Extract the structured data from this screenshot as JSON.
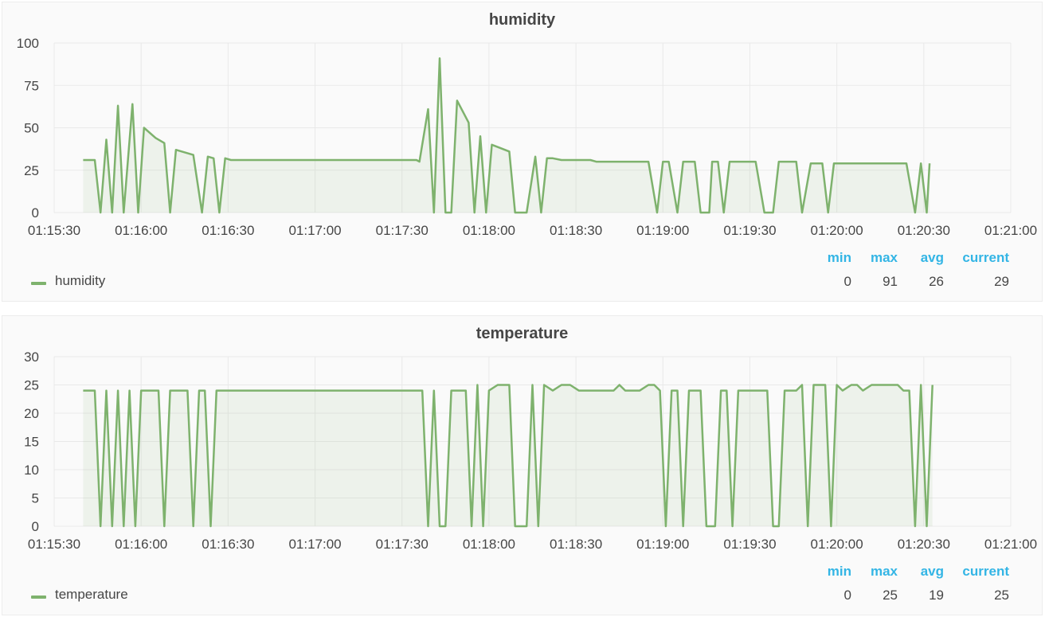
{
  "legend_colors": {
    "series": "#7eb26d",
    "stat_header": "#33b5e5"
  },
  "stat_headers": {
    "min": "min",
    "max": "max",
    "avg": "avg",
    "current": "current"
  },
  "chart_data": [
    {
      "type": "area",
      "title": "humidity",
      "x_unit": "time",
      "x_ticks": [
        "01:15:30",
        "01:16:00",
        "01:16:30",
        "01:17:00",
        "01:17:30",
        "01:18:00",
        "01:18:30",
        "01:19:00",
        "01:19:30",
        "01:20:00",
        "01:20:30",
        "01:21:00"
      ],
      "xlim": [
        "01:15:30",
        "01:21:00"
      ],
      "ylim": [
        0,
        100
      ],
      "y_ticks": [
        0,
        25,
        50,
        75,
        100
      ],
      "grid": true,
      "legend_position": "bottom-left",
      "series": [
        {
          "name": "humidity",
          "color": "#7eb26d",
          "points": [
            [
              "01:15:40",
              31
            ],
            [
              "01:15:44",
              31
            ],
            [
              "01:15:46",
              0
            ],
            [
              "01:15:48",
              43
            ],
            [
              "01:15:50",
              0
            ],
            [
              "01:15:52",
              63
            ],
            [
              "01:15:54",
              0
            ],
            [
              "01:15:57",
              64
            ],
            [
              "01:15:59",
              0
            ],
            [
              "01:16:01",
              50
            ],
            [
              "01:16:05",
              44
            ],
            [
              "01:16:08",
              41
            ],
            [
              "01:16:10",
              0
            ],
            [
              "01:16:12",
              37
            ],
            [
              "01:16:18",
              34
            ],
            [
              "01:16:21",
              0
            ],
            [
              "01:16:23",
              33
            ],
            [
              "01:16:25",
              32
            ],
            [
              "01:16:27",
              0
            ],
            [
              "01:16:29",
              32
            ],
            [
              "01:16:31",
              31
            ],
            [
              "01:17:35",
              31
            ],
            [
              "01:17:36",
              30
            ],
            [
              "01:17:39",
              61
            ],
            [
              "01:17:41",
              0
            ],
            [
              "01:17:43",
              91
            ],
            [
              "01:17:45",
              0
            ],
            [
              "01:17:47",
              0
            ],
            [
              "01:17:49",
              66
            ],
            [
              "01:17:53",
              53
            ],
            [
              "01:17:55",
              0
            ],
            [
              "01:17:57",
              45
            ],
            [
              "01:17:59",
              0
            ],
            [
              "01:18:01",
              40
            ],
            [
              "01:18:04",
              38
            ],
            [
              "01:18:07",
              36
            ],
            [
              "01:18:09",
              0
            ],
            [
              "01:18:13",
              0
            ],
            [
              "01:18:16",
              33
            ],
            [
              "01:18:18",
              0
            ],
            [
              "01:18:20",
              32
            ],
            [
              "01:18:22",
              32
            ],
            [
              "01:18:25",
              31
            ],
            [
              "01:18:35",
              31
            ],
            [
              "01:18:37",
              30
            ],
            [
              "01:18:55",
              30
            ],
            [
              "01:18:58",
              0
            ],
            [
              "01:19:00",
              30
            ],
            [
              "01:19:02",
              30
            ],
            [
              "01:19:05",
              0
            ],
            [
              "01:19:07",
              30
            ],
            [
              "01:19:11",
              30
            ],
            [
              "01:19:13",
              0
            ],
            [
              "01:19:16",
              0
            ],
            [
              "01:19:17",
              30
            ],
            [
              "01:19:19",
              30
            ],
            [
              "01:19:21",
              0
            ],
            [
              "01:19:23",
              30
            ],
            [
              "01:19:32",
              30
            ],
            [
              "01:19:35",
              0
            ],
            [
              "01:19:38",
              0
            ],
            [
              "01:19:40",
              30
            ],
            [
              "01:19:46",
              30
            ],
            [
              "01:19:48",
              0
            ],
            [
              "01:19:51",
              29
            ],
            [
              "01:19:55",
              29
            ],
            [
              "01:19:57",
              0
            ],
            [
              "01:19:59",
              29
            ],
            [
              "01:20:24",
              29
            ],
            [
              "01:20:27",
              0
            ],
            [
              "01:20:29",
              29
            ],
            [
              "01:20:31",
              0
            ],
            [
              "01:20:32",
              29
            ]
          ]
        }
      ],
      "stats": {
        "min": "0",
        "max": "91",
        "avg": "26",
        "current": "29"
      }
    },
    {
      "type": "area",
      "title": "temperature",
      "x_unit": "time",
      "x_ticks": [
        "01:15:30",
        "01:16:00",
        "01:16:30",
        "01:17:00",
        "01:17:30",
        "01:18:00",
        "01:18:30",
        "01:19:00",
        "01:19:30",
        "01:20:00",
        "01:20:30",
        "01:21:00"
      ],
      "xlim": [
        "01:15:30",
        "01:21:00"
      ],
      "ylim": [
        0,
        30
      ],
      "y_ticks": [
        0,
        5,
        10,
        15,
        20,
        25,
        30
      ],
      "grid": true,
      "legend_position": "bottom-left",
      "series": [
        {
          "name": "temperature",
          "color": "#7eb26d",
          "points": [
            [
              "01:15:40",
              24
            ],
            [
              "01:15:44",
              24
            ],
            [
              "01:15:46",
              0
            ],
            [
              "01:15:48",
              24
            ],
            [
              "01:15:50",
              0
            ],
            [
              "01:15:52",
              24
            ],
            [
              "01:15:54",
              0
            ],
            [
              "01:15:56",
              24
            ],
            [
              "01:15:58",
              0
            ],
            [
              "01:16:00",
              24
            ],
            [
              "01:16:06",
              24
            ],
            [
              "01:16:08",
              0
            ],
            [
              "01:16:10",
              24
            ],
            [
              "01:16:16",
              24
            ],
            [
              "01:16:18",
              0
            ],
            [
              "01:16:20",
              24
            ],
            [
              "01:16:22",
              24
            ],
            [
              "01:16:24",
              0
            ],
            [
              "01:16:26",
              24
            ],
            [
              "01:17:37",
              24
            ],
            [
              "01:17:39",
              0
            ],
            [
              "01:17:41",
              24
            ],
            [
              "01:17:43",
              0
            ],
            [
              "01:17:45",
              0
            ],
            [
              "01:17:47",
              24
            ],
            [
              "01:17:52",
              24
            ],
            [
              "01:17:54",
              0
            ],
            [
              "01:17:56",
              25
            ],
            [
              "01:17:58",
              0
            ],
            [
              "01:18:00",
              24
            ],
            [
              "01:18:03",
              25
            ],
            [
              "01:18:07",
              25
            ],
            [
              "01:18:09",
              0
            ],
            [
              "01:18:13",
              0
            ],
            [
              "01:18:15",
              25
            ],
            [
              "01:18:17",
              0
            ],
            [
              "01:18:19",
              25
            ],
            [
              "01:18:22",
              24
            ],
            [
              "01:18:25",
              25
            ],
            [
              "01:18:28",
              25
            ],
            [
              "01:18:31",
              24
            ],
            [
              "01:18:43",
              24
            ],
            [
              "01:18:45",
              25
            ],
            [
              "01:18:47",
              24
            ],
            [
              "01:18:52",
              24
            ],
            [
              "01:18:55",
              25
            ],
            [
              "01:18:57",
              25
            ],
            [
              "01:18:59",
              24
            ],
            [
              "01:19:01",
              0
            ],
            [
              "01:19:03",
              24
            ],
            [
              "01:19:05",
              24
            ],
            [
              "01:19:07",
              0
            ],
            [
              "01:19:09",
              24
            ],
            [
              "01:19:13",
              24
            ],
            [
              "01:19:15",
              0
            ],
            [
              "01:19:18",
              0
            ],
            [
              "01:19:20",
              24
            ],
            [
              "01:19:22",
              24
            ],
            [
              "01:19:24",
              0
            ],
            [
              "01:19:26",
              24
            ],
            [
              "01:19:36",
              24
            ],
            [
              "01:19:38",
              0
            ],
            [
              "01:19:40",
              0
            ],
            [
              "01:19:42",
              24
            ],
            [
              "01:19:46",
              24
            ],
            [
              "01:19:48",
              25
            ],
            [
              "01:19:50",
              0
            ],
            [
              "01:19:52",
              25
            ],
            [
              "01:19:56",
              25
            ],
            [
              "01:19:58",
              0
            ],
            [
              "01:20:00",
              25
            ],
            [
              "01:20:02",
              24
            ],
            [
              "01:20:05",
              25
            ],
            [
              "01:20:07",
              25
            ],
            [
              "01:20:09",
              24
            ],
            [
              "01:20:12",
              25
            ],
            [
              "01:20:21",
              25
            ],
            [
              "01:20:23",
              24
            ],
            [
              "01:20:25",
              24
            ],
            [
              "01:20:27",
              0
            ],
            [
              "01:20:29",
              25
            ],
            [
              "01:20:31",
              0
            ],
            [
              "01:20:33",
              25
            ]
          ]
        }
      ],
      "stats": {
        "min": "0",
        "max": "25",
        "avg": "19",
        "current": "25"
      }
    }
  ]
}
